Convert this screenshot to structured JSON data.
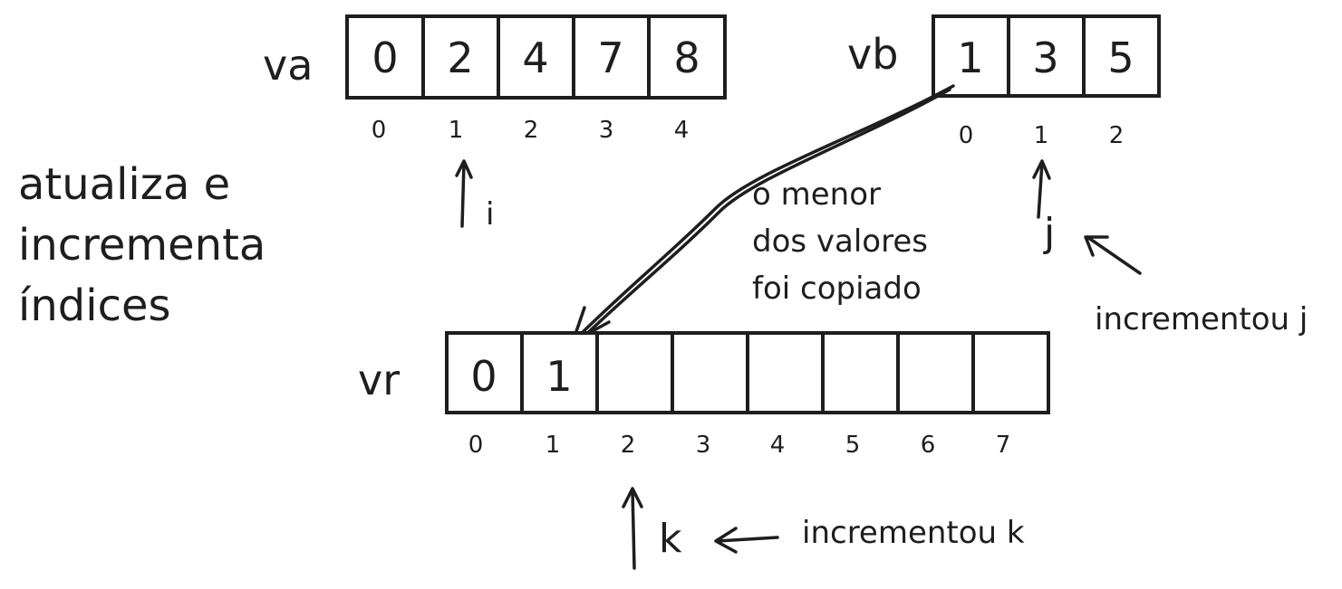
{
  "va": {
    "name": "va",
    "values": [
      "0",
      "2",
      "4",
      "7",
      "8"
    ],
    "indices": [
      "0",
      "1",
      "2",
      "3",
      "4"
    ]
  },
  "vb": {
    "name": "vb",
    "values": [
      "1",
      "3",
      "5"
    ],
    "indices": [
      "0",
      "1",
      "2"
    ]
  },
  "vr": {
    "name": "vr",
    "values": [
      "0",
      "1",
      "",
      "",
      "",
      "",
      "",
      ""
    ],
    "indices": [
      "0",
      "1",
      "2",
      "3",
      "4",
      "5",
      "6",
      "7"
    ]
  },
  "pointers": {
    "i": "i",
    "j": "j",
    "k": "k"
  },
  "side_note": [
    "atualiza e",
    "incrementa",
    "índices"
  ],
  "copy_note": [
    "o menor",
    "dos valores",
    "foi copiado"
  ],
  "increment_j_note": "incrementou j",
  "increment_k_note": "incrementou k",
  "colors": {
    "ink": "#1e1e1e",
    "background": "#ffffff"
  }
}
